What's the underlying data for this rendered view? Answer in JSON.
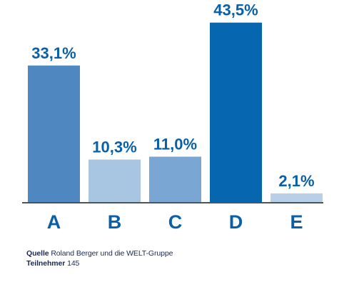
{
  "chart_data": {
    "type": "bar",
    "categories": [
      "A",
      "B",
      "C",
      "D",
      "E"
    ],
    "values": [
      33.1,
      10.3,
      11.0,
      43.5,
      2.1
    ],
    "value_labels": [
      "33,1%",
      "10,3%",
      "11,0%",
      "43,5%",
      "2,1%"
    ],
    "ylim": [
      0,
      45
    ],
    "grid": false,
    "legend": "none"
  },
  "colors": {
    "bars": [
      "#4f87c0",
      "#a8c5e2",
      "#7aa6d3",
      "#0766b0",
      "#b7d0e8"
    ],
    "value_text": "#0b5fa6",
    "category_text": "#0b5fa6",
    "baseline": "#1a1a1a"
  },
  "footer": {
    "source_label": "Quelle",
    "source_text": "Roland Berger und die WELT-Gruppe",
    "participants_label": "Teilnehmer",
    "participants_text": "145"
  }
}
